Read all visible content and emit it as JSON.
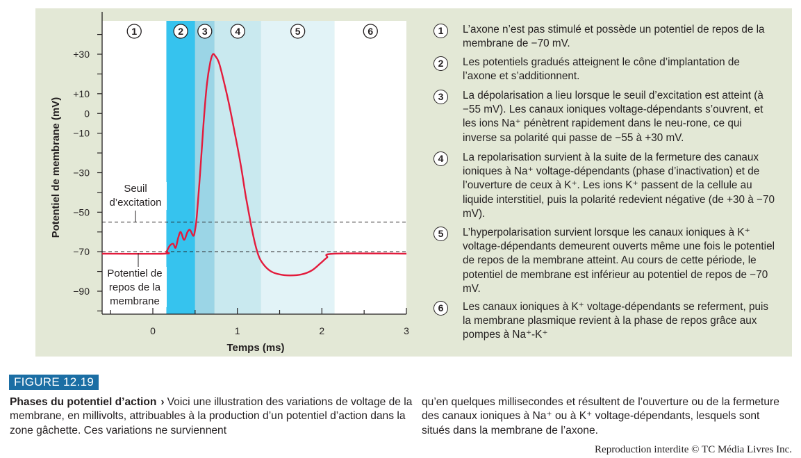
{
  "chart_data": {
    "type": "line",
    "xlabel": "Temps (ms)",
    "ylabel": "Potentiel de membrane (mV)",
    "xlim": [
      -0.6,
      3.0
    ],
    "ylim": [
      -100,
      40
    ],
    "x_ticks": [
      0,
      1,
      2,
      3
    ],
    "y_ticks": [
      30,
      10,
      0,
      -10,
      -30,
      -50,
      -70,
      -90
    ],
    "y_tick_labels": [
      "+30",
      "+10",
      "0",
      "−10",
      "−30",
      "−50",
      "−70",
      "−90"
    ],
    "phases": [
      {
        "num": "1",
        "start": -0.6,
        "end": 0.16,
        "color": "#ffffff"
      },
      {
        "num": "2",
        "start": 0.16,
        "end": 0.5,
        "color": "#36c3ee"
      },
      {
        "num": "3",
        "start": 0.5,
        "end": 0.73,
        "color": "#9bd5e6"
      },
      {
        "num": "4",
        "start": 0.73,
        "end": 1.28,
        "color": "#c9e9ef"
      },
      {
        "num": "5",
        "start": 1.28,
        "end": 2.15,
        "color": "#e2f3f7"
      },
      {
        "num": "6",
        "start": 2.15,
        "end": 3.0,
        "color": "#ffffff"
      }
    ],
    "series": [
      {
        "color": "#e31b3c",
        "points": [
          [
            -0.6,
            -71
          ],
          [
            0.13,
            -71
          ],
          [
            0.16,
            -70
          ],
          [
            0.2,
            -67
          ],
          [
            0.24,
            -66
          ],
          [
            0.27,
            -68
          ],
          [
            0.3,
            -63
          ],
          [
            0.33,
            -60
          ],
          [
            0.37,
            -64
          ],
          [
            0.41,
            -60
          ],
          [
            0.44,
            -59
          ],
          [
            0.48,
            -62
          ],
          [
            0.5,
            -59
          ],
          [
            0.52,
            -52
          ],
          [
            0.56,
            -30
          ],
          [
            0.6,
            -5
          ],
          [
            0.64,
            15
          ],
          [
            0.68,
            26
          ],
          [
            0.71,
            30
          ],
          [
            0.74,
            29
          ],
          [
            0.78,
            26
          ],
          [
            0.83,
            18
          ],
          [
            0.9,
            5
          ],
          [
            0.97,
            -10
          ],
          [
            1.04,
            -26
          ],
          [
            1.1,
            -42
          ],
          [
            1.16,
            -56
          ],
          [
            1.21,
            -66
          ],
          [
            1.26,
            -73
          ],
          [
            1.32,
            -77
          ],
          [
            1.4,
            -80
          ],
          [
            1.5,
            -81.5
          ],
          [
            1.62,
            -82
          ],
          [
            1.76,
            -81.5
          ],
          [
            1.88,
            -79.5
          ],
          [
            1.98,
            -76
          ],
          [
            2.06,
            -73
          ],
          [
            2.14,
            -71
          ],
          [
            3.0,
            -71
          ]
        ]
      }
    ],
    "thresholds": [
      {
        "value": -55,
        "label_lines": [
          "Seuil",
          "d’excitation"
        ]
      },
      {
        "value": -70,
        "label_lines": [
          "Potentiel de",
          "repos de la",
          "membrane"
        ]
      }
    ]
  },
  "legend": [
    {
      "num": "1",
      "text": "L’axone n’est pas stimulé et possède un potentiel de repos de la membrane de −70 mV."
    },
    {
      "num": "2",
      "text": "Les potentiels gradués atteignent le cône d’implantation de l’axone et s’additionnent."
    },
    {
      "num": "3",
      "text": "La dépolarisation a lieu lorsque le seuil d’excitation est atteint (à −55 mV). Les canaux ioniques voltage-dépendants s’ouvrent, et les ions Na⁺ pénètrent rapidement dans le neu-rone, ce qui inverse sa polarité qui passe de −55 à +30 mV."
    },
    {
      "num": "4",
      "text": "La repolarisation survient à la suite de la fermeture des canaux ioniques à Na⁺ voltage-dépendants (phase d’inactivation) et de l’ouverture de ceux à K⁺. Les ions K⁺ passent de la cellule au liquide interstitiel, puis la polarité redevient négative (de +30 à −70 mV)."
    },
    {
      "num": "5",
      "text": "L’hyperpolarisation survient lorsque les canaux ioniques à K⁺ voltage-dépendants demeurent ouverts même une fois le potentiel de repos de la membrane atteint. Au cours de cette période, le potentiel de membrane est inférieur au potentiel de repos de −70 mV."
    },
    {
      "num": "6",
      "text": "Les canaux ioniques à K⁺ voltage-dépendants se referment, puis la membrane plasmique revient à la phase de repos grâce aux pompes à Na⁺-K⁺"
    }
  ],
  "figure": {
    "label": "FIGURE 12.19",
    "caption_title": "Phases du potentiel d’action",
    "caption_arrow": "›",
    "caption_left": "Voici une illustration des variations de voltage de la membrane, en millivolts, attribuables à la production d’un potentiel d’action dans la zone gâchette. Ces variations ne surviennent",
    "caption_right": "qu’en quelques millisecondes et résultent de l’ouverture ou de la fermeture des canaux ioniques à Na⁺ ou à K⁺ voltage-dépendants, lesquels sont situés dans la membrane de l’axone.",
    "copyright": "Reproduction interdite © TC Média Livres Inc."
  },
  "colors": {
    "panel_bg": "#e3e8d6",
    "curve": "#e31b3c",
    "label_bg": "#1b6ea4"
  }
}
